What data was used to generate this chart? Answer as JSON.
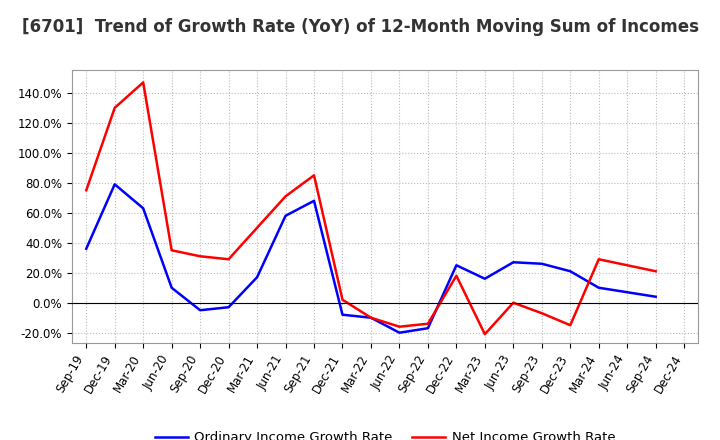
{
  "title": "[6701]  Trend of Growth Rate (YoY) of 12-Month Moving Sum of Incomes",
  "x_labels": [
    "Sep-19",
    "Dec-19",
    "Mar-20",
    "Jun-20",
    "Sep-20",
    "Dec-20",
    "Mar-21",
    "Jun-21",
    "Sep-21",
    "Dec-21",
    "Mar-22",
    "Jun-22",
    "Sep-22",
    "Dec-22",
    "Mar-23",
    "Jun-23",
    "Sep-23",
    "Dec-23",
    "Mar-24",
    "Jun-24",
    "Sep-24",
    "Dec-24"
  ],
  "ordinary_income": [
    0.36,
    0.79,
    0.63,
    0.1,
    -0.05,
    -0.03,
    0.17,
    0.58,
    0.68,
    -0.08,
    -0.1,
    -0.2,
    -0.17,
    0.25,
    0.16,
    0.27,
    0.26,
    0.21,
    0.1,
    0.07,
    0.04,
    null
  ],
  "net_income": [
    0.75,
    1.3,
    1.47,
    0.35,
    0.31,
    0.29,
    0.5,
    0.71,
    0.85,
    0.02,
    -0.1,
    -0.16,
    -0.14,
    0.18,
    -0.21,
    0.0,
    -0.07,
    -0.15,
    0.29,
    0.25,
    0.21,
    null
  ],
  "ordinary_color": "#0000ff",
  "net_color": "#ff0000",
  "background_color": "#ffffff",
  "grid_color": "#bbbbbb",
  "legend_ordinary": "Ordinary Income Growth Rate",
  "legend_net": "Net Income Growth Rate",
  "title_fontsize": 12,
  "tick_fontsize": 8.5
}
